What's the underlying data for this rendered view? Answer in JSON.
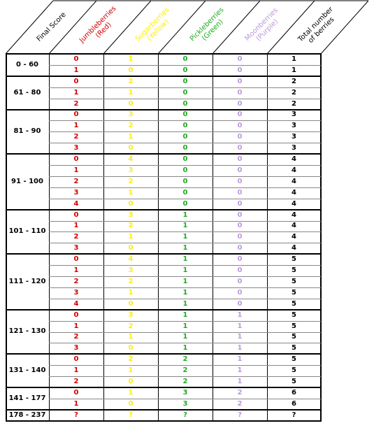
{
  "headers": [
    {
      "key": "score",
      "label": "Final Score",
      "color": "#000000"
    },
    {
      "key": "red",
      "label": "Jumbleberries\n(Red)",
      "color": "#d40000"
    },
    {
      "key": "yellow",
      "label": "Sugarberries\n(Yellow)",
      "color": "#ffee00"
    },
    {
      "key": "green",
      "label": "Pickleberries\n(Green)",
      "color": "#22aa22"
    },
    {
      "key": "purple",
      "label": "Moonberries\n(Purple)",
      "color": "#bb99dd"
    },
    {
      "key": "total",
      "label": "Total number\nof berries",
      "color": "#000000"
    }
  ],
  "groups": [
    {
      "range": "0 - 60",
      "rows": [
        [
          "0",
          "1",
          "0",
          "0",
          "1"
        ],
        [
          "1",
          "0",
          "0",
          "0",
          "1"
        ]
      ]
    },
    {
      "range": "61 - 80",
      "rows": [
        [
          "0",
          "2",
          "0",
          "0",
          "2"
        ],
        [
          "1",
          "1",
          "0",
          "0",
          "2"
        ],
        [
          "2",
          "0",
          "0",
          "0",
          "2"
        ]
      ]
    },
    {
      "range": "81 - 90",
      "rows": [
        [
          "0",
          "3",
          "0",
          "0",
          "3"
        ],
        [
          "1",
          "2",
          "0",
          "0",
          "3"
        ],
        [
          "2",
          "1",
          "0",
          "0",
          "3"
        ],
        [
          "3",
          "0",
          "0",
          "0",
          "3"
        ]
      ]
    },
    {
      "range": "91 - 100",
      "rows": [
        [
          "0",
          "4",
          "0",
          "0",
          "4"
        ],
        [
          "1",
          "3",
          "0",
          "0",
          "4"
        ],
        [
          "2",
          "2",
          "0",
          "0",
          "4"
        ],
        [
          "3",
          "1",
          "0",
          "0",
          "4"
        ],
        [
          "4",
          "0",
          "0",
          "0",
          "4"
        ]
      ]
    },
    {
      "range": "101 - 110",
      "rows": [
        [
          "0",
          "3",
          "1",
          "0",
          "4"
        ],
        [
          "1",
          "2",
          "1",
          "0",
          "4"
        ],
        [
          "2",
          "1",
          "1",
          "0",
          "4"
        ],
        [
          "3",
          "0",
          "1",
          "0",
          "4"
        ]
      ]
    },
    {
      "range": "111 - 120",
      "rows": [
        [
          "0",
          "4",
          "1",
          "0",
          "5"
        ],
        [
          "1",
          "3",
          "1",
          "0",
          "5"
        ],
        [
          "2",
          "2",
          "1",
          "0",
          "5"
        ],
        [
          "3",
          "1",
          "1",
          "0",
          "5"
        ],
        [
          "4",
          "0",
          "1",
          "0",
          "5"
        ]
      ]
    },
    {
      "range": "121 - 130",
      "rows": [
        [
          "0",
          "3",
          "1",
          "1",
          "5"
        ],
        [
          "1",
          "2",
          "1",
          "1",
          "5"
        ],
        [
          "2",
          "1",
          "1",
          "1",
          "5"
        ],
        [
          "3",
          "0",
          "1",
          "1",
          "5"
        ]
      ]
    },
    {
      "range": "131 - 140",
      "rows": [
        [
          "0",
          "2",
          "2",
          "1",
          "5"
        ],
        [
          "1",
          "1",
          "2",
          "1",
          "5"
        ],
        [
          "2",
          "0",
          "2",
          "1",
          "5"
        ]
      ]
    },
    {
      "range": "141 - 177",
      "rows": [
        [
          "0",
          "1",
          "3",
          "2",
          "6"
        ],
        [
          "1",
          "0",
          "3",
          "2",
          "6"
        ]
      ]
    },
    {
      "range": "178 - 237",
      "rows": [
        [
          "?",
          "?",
          "?",
          "?",
          "?"
        ]
      ]
    }
  ]
}
